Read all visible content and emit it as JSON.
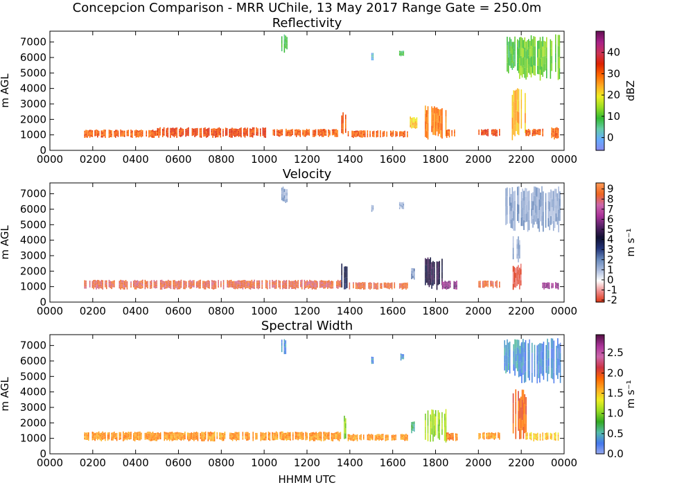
{
  "suptitle": "Concepcion Comparison - MRR UChile, 13 May 2017 Range Gate = 250.0m",
  "xlabel": "HHMM UTC",
  "chart_data": [
    {
      "type": "heatmap",
      "title": "Reflectivity",
      "ylabel": "m AGL",
      "xlim": [
        0,
        24
      ],
      "ylim": [
        0,
        7700
      ],
      "x_ticks": [
        "0000",
        "0200",
        "0400",
        "0600",
        "0800",
        "1000",
        "1200",
        "1400",
        "1600",
        "1800",
        "2000",
        "2200",
        "0000"
      ],
      "y_ticks": [
        "0",
        "1000",
        "2000",
        "3000",
        "4000",
        "5000",
        "6000",
        "7000"
      ],
      "colorbar": {
        "label": "dBZ",
        "min": -6,
        "max": 50,
        "ticks": [
          "0",
          "10",
          "20",
          "30",
          "40"
        ],
        "tick_values": [
          0,
          10,
          20,
          30,
          40
        ],
        "colors": [
          "#8888ee",
          "#66aaff",
          "#66ccaa",
          "#33bb33",
          "#99dd22",
          "#eeee22",
          "#ffaa22",
          "#ff6600",
          "#dd2200",
          "#cc3355",
          "#aa2288",
          "#661155"
        ]
      },
      "regions": [
        {
          "t0": 1.6,
          "t1": 5.0,
          "h0": 800,
          "h1": 1350,
          "v": 31
        },
        {
          "t0": 5.0,
          "t1": 10.1,
          "h0": 800,
          "h1": 1500,
          "v": 33
        },
        {
          "t0": 10.4,
          "t1": 13.6,
          "h0": 850,
          "h1": 1400,
          "v": 31
        },
        {
          "t0": 13.6,
          "t1": 13.9,
          "h0": 700,
          "h1": 2500,
          "v": 31
        },
        {
          "t0": 13.9,
          "t1": 16.7,
          "h0": 800,
          "h1": 1300,
          "v": 31
        },
        {
          "t0": 16.8,
          "t1": 17.1,
          "h0": 1300,
          "h1": 2200,
          "v": 22
        },
        {
          "t0": 17.5,
          "t1": 18.5,
          "h0": 700,
          "h1": 2900,
          "v": 28
        },
        {
          "t0": 18.5,
          "t1": 19.0,
          "h0": 800,
          "h1": 1400,
          "v": 30
        },
        {
          "t0": 20.0,
          "t1": 21.0,
          "h0": 900,
          "h1": 1400,
          "v": 33
        },
        {
          "t0": 21.5,
          "t1": 22.2,
          "h0": 600,
          "h1": 4200,
          "v": 24
        },
        {
          "t0": 22.2,
          "t1": 23.0,
          "h0": 900,
          "h1": 1400,
          "v": 31
        },
        {
          "t0": 23.4,
          "t1": 23.7,
          "h0": 700,
          "h1": 1500,
          "v": 30
        },
        {
          "t0": 10.8,
          "t1": 11.1,
          "h0": 6300,
          "h1": 7500,
          "v": 8
        },
        {
          "t0": 15.0,
          "t1": 15.1,
          "h0": 5800,
          "h1": 6300,
          "v": 0
        },
        {
          "t0": 16.3,
          "t1": 16.5,
          "h0": 6000,
          "h1": 6500,
          "v": 8
        },
        {
          "t0": 21.2,
          "t1": 21.9,
          "h0": 4900,
          "h1": 7400,
          "v": 9
        },
        {
          "t0": 21.9,
          "t1": 23.8,
          "h0": 4500,
          "h1": 7500,
          "v": 12
        }
      ]
    },
    {
      "type": "heatmap",
      "title": "Velocity",
      "ylabel": "m AGL",
      "xlim": [
        0,
        24
      ],
      "ylim": [
        0,
        7700
      ],
      "x_ticks": [
        "0000",
        "0200",
        "0400",
        "0600",
        "0800",
        "1000",
        "1200",
        "1400",
        "1600",
        "1800",
        "2000",
        "2200",
        "0000"
      ],
      "y_ticks": [
        "0",
        "1000",
        "2000",
        "3000",
        "4000",
        "5000",
        "6000",
        "7000"
      ],
      "colorbar": {
        "label": "m s⁻¹",
        "min": -2.2,
        "max": 9.6,
        "ticks": [
          "-2",
          "-1",
          "0",
          "1",
          "2",
          "3",
          "4",
          "5",
          "6",
          "7",
          "8",
          "9"
        ],
        "tick_values": [
          -2,
          -1,
          0,
          1,
          2,
          3,
          4,
          5,
          6,
          7,
          8,
          9
        ],
        "colors": [
          "#dd3311",
          "#ee8888",
          "#ffffff",
          "#aabbdd",
          "#6688bb",
          "#223377",
          "#111133",
          "#552266",
          "#aa3399",
          "#cc66aa",
          "#ee6622",
          "#ff9955"
        ]
      },
      "regions": [
        {
          "t0": 1.6,
          "t1": 13.6,
          "h0": 800,
          "h1": 1450,
          "v": 8.3
        },
        {
          "t0": 13.6,
          "t1": 13.9,
          "h0": 800,
          "h1": 2500,
          "v": 3.6
        },
        {
          "t0": 13.9,
          "t1": 16.7,
          "h0": 800,
          "h1": 1300,
          "v": 8.4
        },
        {
          "t0": 16.8,
          "t1": 17.0,
          "h0": 1400,
          "h1": 2200,
          "v": 1.8
        },
        {
          "t0": 17.5,
          "t1": 18.3,
          "h0": 700,
          "h1": 2900,
          "v": 4.5
        },
        {
          "t0": 18.3,
          "t1": 19.0,
          "h0": 800,
          "h1": 1400,
          "v": 6.0
        },
        {
          "t0": 20.0,
          "t1": 21.0,
          "h0": 900,
          "h1": 1400,
          "v": 8.5
        },
        {
          "t0": 21.6,
          "t1": 22.0,
          "h0": 700,
          "h1": 2500,
          "v": -1.8
        },
        {
          "t0": 21.6,
          "t1": 22.0,
          "h0": 2500,
          "h1": 4300,
          "v": 1.4
        },
        {
          "t0": 22.8,
          "t1": 23.7,
          "h0": 800,
          "h1": 1300,
          "v": 6.2
        },
        {
          "t0": 10.8,
          "t1": 11.1,
          "h0": 6300,
          "h1": 7500,
          "v": 1.5
        },
        {
          "t0": 15.0,
          "t1": 15.1,
          "h0": 5800,
          "h1": 6300,
          "v": 1.2
        },
        {
          "t0": 16.3,
          "t1": 16.5,
          "h0": 6000,
          "h1": 6500,
          "v": 1.2
        },
        {
          "t0": 21.2,
          "t1": 23.8,
          "h0": 4500,
          "h1": 7500,
          "v": 1.5
        }
      ]
    },
    {
      "type": "heatmap",
      "title": "Spectral Width",
      "ylabel": "m AGL",
      "xlim": [
        0,
        24
      ],
      "ylim": [
        0,
        7700
      ],
      "x_ticks": [
        "0000",
        "0200",
        "0400",
        "0600",
        "0800",
        "1000",
        "1200",
        "1400",
        "1600",
        "1800",
        "2000",
        "2200",
        "0000"
      ],
      "y_ticks": [
        "0",
        "1000",
        "2000",
        "3000",
        "4000",
        "5000",
        "6000",
        "7000"
      ],
      "colorbar": {
        "label": "m s⁻¹",
        "min": 0,
        "max": 2.95,
        "ticks": [
          "0.0",
          "0.5",
          "1.0",
          "1.5",
          "2.0",
          "2.5"
        ],
        "tick_values": [
          0,
          0.5,
          1.0,
          1.5,
          2.0,
          2.5
        ],
        "colors": [
          "#99aaee",
          "#4477ee",
          "#55bbaa",
          "#33aa22",
          "#99dd22",
          "#eeee22",
          "#ffaa22",
          "#ff6600",
          "#cc3344",
          "#cc66aa",
          "#aa3399",
          "#551144"
        ]
      },
      "regions": [
        {
          "t0": 1.6,
          "t1": 13.6,
          "h0": 800,
          "h1": 1450,
          "v": 1.7
        },
        {
          "t0": 13.6,
          "t1": 13.9,
          "h0": 800,
          "h1": 2500,
          "v": 1.0
        },
        {
          "t0": 13.9,
          "t1": 16.7,
          "h0": 800,
          "h1": 1300,
          "v": 1.7
        },
        {
          "t0": 16.8,
          "t1": 17.0,
          "h0": 1300,
          "h1": 2200,
          "v": 0.6
        },
        {
          "t0": 17.5,
          "t1": 18.5,
          "h0": 700,
          "h1": 2900,
          "v": 1.1
        },
        {
          "t0": 18.5,
          "t1": 19.0,
          "h0": 800,
          "h1": 1400,
          "v": 1.8
        },
        {
          "t0": 20.0,
          "t1": 21.0,
          "h0": 900,
          "h1": 1400,
          "v": 1.7
        },
        {
          "t0": 21.6,
          "t1": 22.2,
          "h0": 700,
          "h1": 4200,
          "v": 1.9
        },
        {
          "t0": 22.2,
          "t1": 23.7,
          "h0": 800,
          "h1": 1400,
          "v": 1.5
        },
        {
          "t0": 10.8,
          "t1": 11.1,
          "h0": 6300,
          "h1": 7500,
          "v": 0.35
        },
        {
          "t0": 15.0,
          "t1": 15.1,
          "h0": 5800,
          "h1": 6300,
          "v": 0.35
        },
        {
          "t0": 16.3,
          "t1": 16.5,
          "h0": 6000,
          "h1": 6500,
          "v": 0.35
        },
        {
          "t0": 21.2,
          "t1": 22.0,
          "h0": 4900,
          "h1": 7400,
          "v": 0.4
        },
        {
          "t0": 22.0,
          "t1": 23.8,
          "h0": 4500,
          "h1": 7500,
          "v": 0.3
        }
      ]
    }
  ]
}
